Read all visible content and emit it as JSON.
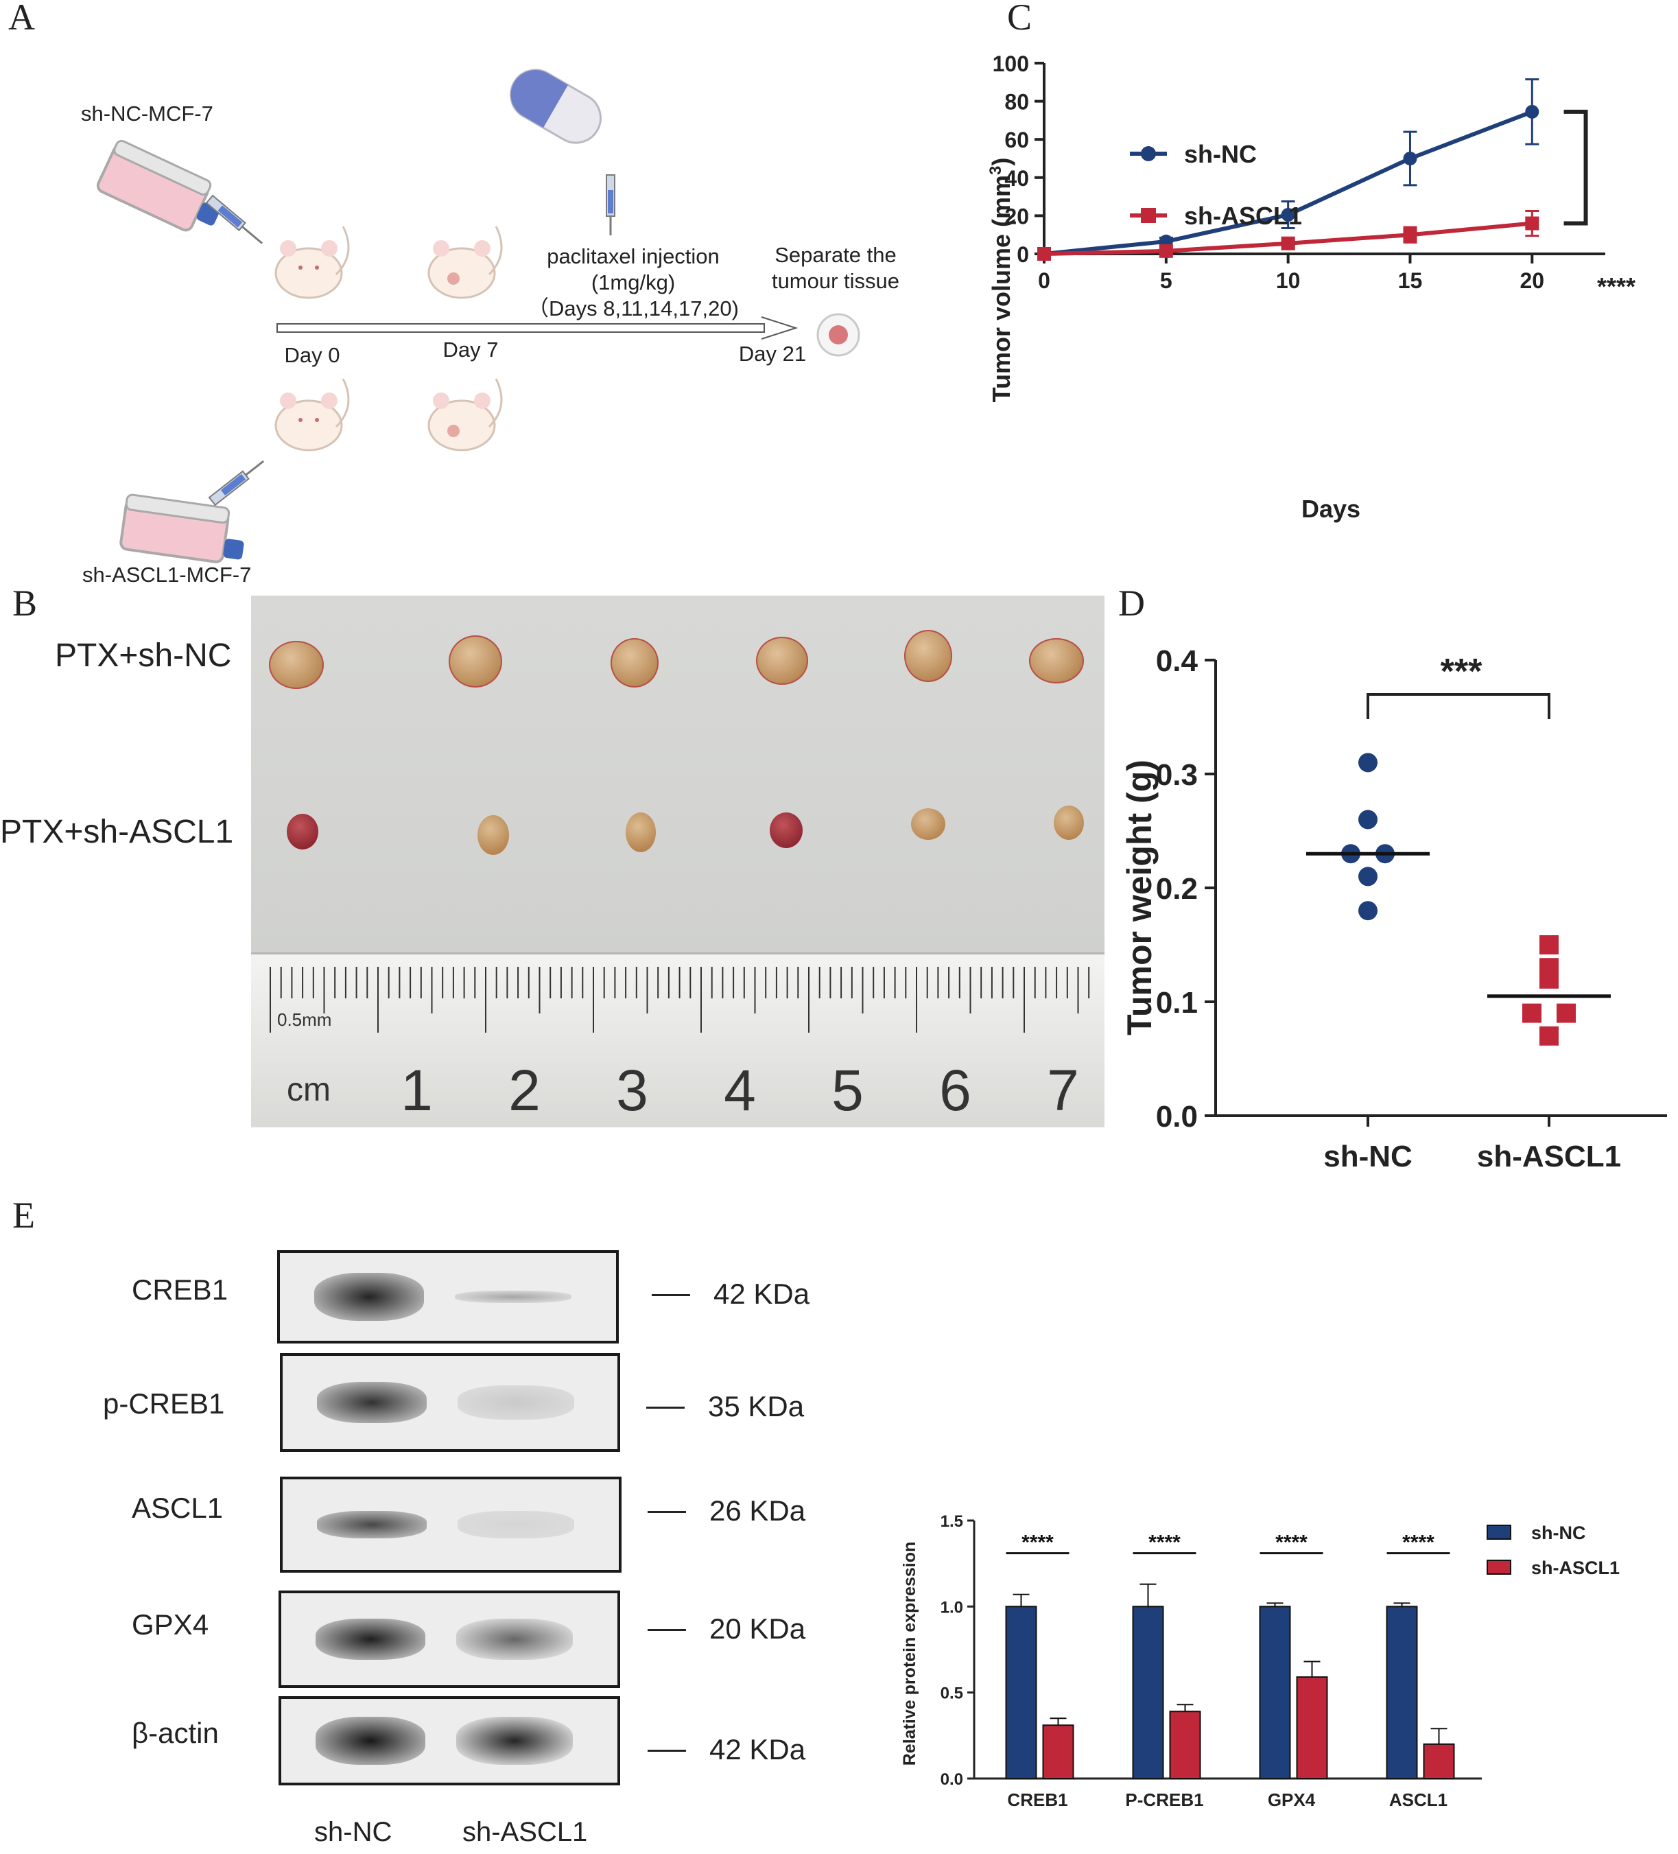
{
  "panels": {
    "A": "A",
    "B": "B",
    "C": "C",
    "D": "D",
    "E": "E"
  },
  "schematic": {
    "top_cells": "sh-NC-MCF-7",
    "bottom_cells": "sh-ASCL1-MCF-7",
    "injection": "paclitaxel injection",
    "dose": "(1mg/kg)",
    "days": "（Days 8,11,14,17,20)",
    "separate_1": "Separate the",
    "separate_2": "tumour tissue",
    "day0": "Day 0",
    "day7": "Day 7",
    "day21": "Day 21"
  },
  "photo": {
    "row1": "PTX+sh-NC",
    "row2": "PTX+sh-ASCL1",
    "ruler_small": "0.5mm",
    "ruler_unit": "cm",
    "ruler_numbers": [
      "1",
      "2",
      "3",
      "4",
      "5",
      "6",
      "7"
    ]
  },
  "chart_data": [
    {
      "id": "C",
      "type": "line",
      "xlabel": "Days",
      "ylabel": "Tumor volume (mm³)",
      "ylabel_main": "Tumor volume (mm",
      "ylabel_sup": "3",
      "ylabel_end": ")",
      "x": [
        0,
        5,
        10,
        15,
        20
      ],
      "xticks": [
        "0",
        "5",
        "10",
        "15",
        "20"
      ],
      "yticks": [
        "0",
        "20",
        "40",
        "60",
        "80",
        "100"
      ],
      "ylim": [
        0,
        100
      ],
      "xlim": [
        0,
        23
      ],
      "series": [
        {
          "name": "sh-NC",
          "values": [
            0,
            6.5,
            20.5,
            50,
            74.5
          ],
          "errors": [
            0,
            2,
            7,
            14,
            17
          ],
          "color": "#1f3f7a",
          "marker": "circle"
        },
        {
          "name": "sh-ASCL1",
          "values": [
            0,
            1.5,
            5.5,
            10,
            16
          ],
          "errors": [
            0,
            1,
            1.5,
            4,
            6.5
          ],
          "color": "#c0283a",
          "marker": "square"
        }
      ],
      "significance": "****",
      "legend": "top-left"
    },
    {
      "id": "D",
      "type": "scatter",
      "ylabel": "Tumor weight (g)",
      "categories": [
        "sh-NC",
        "sh-ASCL1"
      ],
      "yticks": [
        "0.0",
        "0.1",
        "0.2",
        "0.3",
        "0.4"
      ],
      "ylim": [
        0,
        0.4
      ],
      "series": [
        {
          "name": "sh-NC",
          "values": [
            0.31,
            0.26,
            0.23,
            0.23,
            0.21,
            0.18
          ],
          "mean": 0.23,
          "color": "#1f3f7a",
          "marker": "circle"
        },
        {
          "name": "sh-ASCL1",
          "values": [
            0.15,
            0.13,
            0.12,
            0.09,
            0.09,
            0.07
          ],
          "mean": 0.105,
          "color": "#c0283a",
          "marker": "square"
        }
      ],
      "significance": "***"
    },
    {
      "id": "E",
      "type": "bar",
      "ylabel": "Relative protein expression",
      "categories": [
        "CREB1",
        "P-CREB1",
        "GPX4",
        "ASCL1"
      ],
      "yticks": [
        "0.0",
        "0.5",
        "1.0",
        "1.5"
      ],
      "ylim": [
        0,
        1.5
      ],
      "series": [
        {
          "name": "sh-NC",
          "values": [
            1.0,
            1.0,
            1.0,
            1.0
          ],
          "errors": [
            0.07,
            0.13,
            0.02,
            0.02
          ],
          "color": "#1f3f7a"
        },
        {
          "name": "sh-ASCL1",
          "values": [
            0.31,
            0.39,
            0.59,
            0.2
          ],
          "errors": [
            0.04,
            0.04,
            0.09,
            0.09
          ],
          "color": "#c0283a"
        }
      ],
      "significance": [
        "****",
        "****",
        "****",
        "****"
      ],
      "legend": "right"
    }
  ],
  "western": {
    "proteins": [
      "CREB1",
      "p-CREB1",
      "ASCL1",
      "GPX4",
      "β-actin"
    ],
    "sizes": [
      "42 KDa",
      "35 KDa",
      "26 KDa",
      "20 KDa",
      "42 KDa"
    ],
    "lanes": [
      "sh-NC",
      "sh-ASCL1"
    ]
  }
}
